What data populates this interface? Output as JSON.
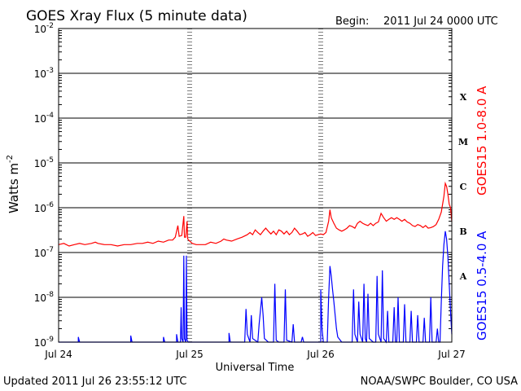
{
  "header": {
    "title": "GOES Xray Flux (5 minute data)",
    "begin_label": "Begin:",
    "begin_value": "2011 Jul 24 0000 UTC"
  },
  "footer": {
    "updated": "Updated 2011 Jul 26 23:55:12 UTC",
    "credit": "NOAA/SWPC Boulder, CO USA"
  },
  "colors": {
    "long_channel": "#ff0000",
    "short_channel": "#0000ff",
    "axes": "#000000"
  },
  "chart_data": {
    "type": "line",
    "title": "GOES Xray Flux (5 minute data)",
    "xlabel": "Universal Time",
    "ylabel": "Watts m",
    "ylabel_exp": "-2",
    "yscale": "log",
    "ylim": [
      1e-09,
      0.01
    ],
    "xlim": [
      "2011-07-24",
      "2011-07-27"
    ],
    "y_ticks": [
      {
        "base": "10",
        "exp": "-9",
        "value": 1e-09
      },
      {
        "base": "10",
        "exp": "-8",
        "value": 1e-08
      },
      {
        "base": "10",
        "exp": "-7",
        "value": 1e-07
      },
      {
        "base": "10",
        "exp": "-6",
        "value": 1e-06
      },
      {
        "base": "10",
        "exp": "-5",
        "value": 1e-05
      },
      {
        "base": "10",
        "exp": "-4",
        "value": 0.0001
      },
      {
        "base": "10",
        "exp": "-3",
        "value": 0.001
      },
      {
        "base": "10",
        "exp": "-2",
        "value": 0.01
      }
    ],
    "x_ticks": [
      {
        "label": "Jul 24",
        "day": 0
      },
      {
        "label": "Jul 25",
        "day": 1
      },
      {
        "label": "Jul 26",
        "day": 2
      },
      {
        "label": "Jul 27",
        "day": 3
      }
    ],
    "flare_classes": [
      {
        "label": "X",
        "value": 0.0003
      },
      {
        "label": "M",
        "value": 3e-05
      },
      {
        "label": "C",
        "value": 3e-06
      },
      {
        "label": "B",
        "value": 3e-07
      },
      {
        "label": "A",
        "value": 3e-08
      }
    ],
    "grid": true,
    "series": [
      {
        "name": "GOES15 1.0-8.0 A",
        "color": "#ff0000",
        "points": [
          [
            0.0,
            1.5e-07
          ],
          [
            0.04,
            1.6e-07
          ],
          [
            0.08,
            1.4e-07
          ],
          [
            0.12,
            1.5e-07
          ],
          [
            0.16,
            1.6e-07
          ],
          [
            0.2,
            1.5e-07
          ],
          [
            0.25,
            1.6e-07
          ],
          [
            0.28,
            1.7e-07
          ],
          [
            0.3,
            1.6e-07
          ],
          [
            0.35,
            1.5e-07
          ],
          [
            0.4,
            1.5e-07
          ],
          [
            0.45,
            1.4e-07
          ],
          [
            0.5,
            1.5e-07
          ],
          [
            0.55,
            1.5e-07
          ],
          [
            0.6,
            1.6e-07
          ],
          [
            0.64,
            1.6e-07
          ],
          [
            0.68,
            1.7e-07
          ],
          [
            0.72,
            1.6e-07
          ],
          [
            0.76,
            1.8e-07
          ],
          [
            0.8,
            1.7e-07
          ],
          [
            0.84,
            1.9e-07
          ],
          [
            0.87,
            1.9e-07
          ],
          [
            0.89,
            2.2e-07
          ],
          [
            0.91,
            4e-07
          ],
          [
            0.92,
            2.3e-07
          ],
          [
            0.94,
            2.4e-07
          ],
          [
            0.955,
            6.5e-07
          ],
          [
            0.96,
            2.2e-07
          ],
          [
            0.97,
            2.2e-07
          ],
          [
            0.98,
            5e-07
          ],
          [
            0.985,
            2e-07
          ],
          [
            1.0,
            1.8e-07
          ],
          [
            1.02,
            1.6e-07
          ],
          [
            1.05,
            1.5e-07
          ],
          [
            1.08,
            1.5e-07
          ],
          [
            1.12,
            1.5e-07
          ],
          [
            1.16,
            1.7e-07
          ],
          [
            1.2,
            1.6e-07
          ],
          [
            1.24,
            1.8e-07
          ],
          [
            1.26,
            2e-07
          ],
          [
            1.28,
            1.9e-07
          ],
          [
            1.32,
            1.8e-07
          ],
          [
            1.36,
            2e-07
          ],
          [
            1.4,
            2.2e-07
          ],
          [
            1.44,
            2.5e-07
          ],
          [
            1.46,
            2.8e-07
          ],
          [
            1.48,
            2.5e-07
          ],
          [
            1.5,
            3.2e-07
          ],
          [
            1.52,
            2.8e-07
          ],
          [
            1.54,
            2.5e-07
          ],
          [
            1.56,
            3e-07
          ],
          [
            1.58,
            3.5e-07
          ],
          [
            1.6,
            3e-07
          ],
          [
            1.62,
            2.6e-07
          ],
          [
            1.64,
            3e-07
          ],
          [
            1.66,
            2.5e-07
          ],
          [
            1.68,
            3.2e-07
          ],
          [
            1.7,
            3e-07
          ],
          [
            1.72,
            2.6e-07
          ],
          [
            1.74,
            3e-07
          ],
          [
            1.76,
            2.5e-07
          ],
          [
            1.78,
            2.8e-07
          ],
          [
            1.8,
            3.5e-07
          ],
          [
            1.82,
            3e-07
          ],
          [
            1.84,
            2.5e-07
          ],
          [
            1.86,
            2.6e-07
          ],
          [
            1.88,
            2.8e-07
          ],
          [
            1.9,
            2.3e-07
          ],
          [
            1.92,
            2.5e-07
          ],
          [
            1.94,
            2.8e-07
          ],
          [
            1.96,
            2.4e-07
          ],
          [
            1.98,
            2.5e-07
          ],
          [
            2.0,
            2.6e-07
          ],
          [
            2.02,
            2.5e-07
          ],
          [
            2.04,
            2.8e-07
          ],
          [
            2.06,
            5e-07
          ],
          [
            2.07,
            9e-07
          ],
          [
            2.08,
            6e-07
          ],
          [
            2.1,
            4.5e-07
          ],
          [
            2.12,
            3.5e-07
          ],
          [
            2.14,
            3.2e-07
          ],
          [
            2.16,
            3e-07
          ],
          [
            2.18,
            3.2e-07
          ],
          [
            2.2,
            3.5e-07
          ],
          [
            2.22,
            4e-07
          ],
          [
            2.24,
            3.8e-07
          ],
          [
            2.26,
            3.5e-07
          ],
          [
            2.28,
            4.5e-07
          ],
          [
            2.3,
            5e-07
          ],
          [
            2.32,
            4.5e-07
          ],
          [
            2.34,
            4.2e-07
          ],
          [
            2.36,
            4e-07
          ],
          [
            2.38,
            4.5e-07
          ],
          [
            2.4,
            4e-07
          ],
          [
            2.42,
            4.5e-07
          ],
          [
            2.44,
            4.8e-07
          ],
          [
            2.46,
            7.5e-07
          ],
          [
            2.48,
            6e-07
          ],
          [
            2.5,
            5e-07
          ],
          [
            2.52,
            5.5e-07
          ],
          [
            2.54,
            6e-07
          ],
          [
            2.56,
            5.5e-07
          ],
          [
            2.58,
            6e-07
          ],
          [
            2.6,
            5.5e-07
          ],
          [
            2.62,
            5e-07
          ],
          [
            2.64,
            5.5e-07
          ],
          [
            2.66,
            4.8e-07
          ],
          [
            2.68,
            4.5e-07
          ],
          [
            2.7,
            4e-07
          ],
          [
            2.72,
            3.8e-07
          ],
          [
            2.74,
            4.2e-07
          ],
          [
            2.76,
            4e-07
          ],
          [
            2.78,
            3.6e-07
          ],
          [
            2.8,
            4e-07
          ],
          [
            2.82,
            3.5e-07
          ],
          [
            2.84,
            3.6e-07
          ],
          [
            2.86,
            3.8e-07
          ],
          [
            2.88,
            4.2e-07
          ],
          [
            2.9,
            5.5e-07
          ],
          [
            2.92,
            8e-07
          ],
          [
            2.94,
            1.8e-06
          ],
          [
            2.95,
            3.5e-06
          ],
          [
            2.96,
            3e-06
          ],
          [
            2.97,
            2e-06
          ],
          [
            2.98,
            1.2e-06
          ],
          [
            2.99,
            1e-06
          ],
          [
            3.0,
            5e-07
          ]
        ]
      },
      {
        "name": "GOES15 0.5-4.0 A",
        "color": "#0000ff",
        "points": [
          [
            0.0,
            1e-09
          ],
          [
            0.15,
            1e-09
          ],
          [
            0.15,
            1.3e-09
          ],
          [
            0.16,
            1e-09
          ],
          [
            0.25,
            1e-09
          ],
          [
            0.55,
            1e-09
          ],
          [
            0.55,
            1.4e-09
          ],
          [
            0.56,
            1e-09
          ],
          [
            0.8,
            1e-09
          ],
          [
            0.8,
            1.3e-09
          ],
          [
            0.81,
            1e-09
          ],
          [
            0.9,
            1e-09
          ],
          [
            0.9,
            1.5e-09
          ],
          [
            0.91,
            1e-09
          ],
          [
            0.93,
            1e-09
          ],
          [
            0.935,
            6e-09
          ],
          [
            0.94,
            1.2e-09
          ],
          [
            0.95,
            1e-09
          ],
          [
            0.955,
            8.5e-08
          ],
          [
            0.96,
            1.2e-09
          ],
          [
            0.97,
            1e-09
          ],
          [
            0.975,
            8.5e-08
          ],
          [
            0.98,
            1.1e-09
          ],
          [
            0.99,
            1e-09
          ],
          [
            1.1,
            1e-09
          ],
          [
            1.3,
            1e-09
          ],
          [
            1.3,
            1.6e-09
          ],
          [
            1.31,
            1e-09
          ],
          [
            1.4,
            1e-09
          ],
          [
            1.42,
            1e-09
          ],
          [
            1.43,
            5.5e-09
          ],
          [
            1.44,
            1.5e-09
          ],
          [
            1.46,
            1e-09
          ],
          [
            1.47,
            4e-09
          ],
          [
            1.48,
            1.2e-09
          ],
          [
            1.52,
            1e-09
          ],
          [
            1.53,
            2.5e-09
          ],
          [
            1.54,
            5e-09
          ],
          [
            1.55,
            1e-08
          ],
          [
            1.56,
            4e-09
          ],
          [
            1.57,
            1.2e-09
          ],
          [
            1.6,
            1e-09
          ],
          [
            1.64,
            1e-09
          ],
          [
            1.65,
            2e-08
          ],
          [
            1.66,
            1.1e-09
          ],
          [
            1.68,
            1e-09
          ],
          [
            1.72,
            1e-09
          ],
          [
            1.73,
            1.5e-08
          ],
          [
            1.74,
            1.1e-09
          ],
          [
            1.78,
            1e-09
          ],
          [
            1.79,
            2.5e-09
          ],
          [
            1.8,
            1e-09
          ],
          [
            1.85,
            1e-09
          ],
          [
            1.86,
            1.3e-09
          ],
          [
            1.87,
            1e-09
          ],
          [
            1.9,
            1e-09
          ],
          [
            1.95,
            1e-09
          ],
          [
            2.0,
            1e-09
          ],
          [
            2.0,
            1.5e-08
          ],
          [
            2.01,
            2e-09
          ],
          [
            2.02,
            1e-09
          ],
          [
            2.05,
            1e-09
          ],
          [
            2.06,
            1e-08
          ],
          [
            2.07,
            5e-08
          ],
          [
            2.08,
            3e-08
          ],
          [
            2.09,
            1.5e-08
          ],
          [
            2.1,
            8e-09
          ],
          [
            2.11,
            4e-09
          ],
          [
            2.12,
            2e-09
          ],
          [
            2.13,
            1.3e-09
          ],
          [
            2.16,
            1e-09
          ],
          [
            2.24,
            1e-09
          ],
          [
            2.25,
            1.5e-08
          ],
          [
            2.26,
            1.5e-09
          ],
          [
            2.28,
            1e-09
          ],
          [
            2.29,
            8e-09
          ],
          [
            2.3,
            1.5e-09
          ],
          [
            2.32,
            1e-09
          ],
          [
            2.33,
            2e-08
          ],
          [
            2.34,
            1.2e-09
          ],
          [
            2.35,
            1e-09
          ],
          [
            2.36,
            1.2e-08
          ],
          [
            2.37,
            1.2e-09
          ],
          [
            2.4,
            1e-09
          ],
          [
            2.42,
            1e-09
          ],
          [
            2.43,
            3e-08
          ],
          [
            2.44,
            1.5e-09
          ],
          [
            2.46,
            1e-09
          ],
          [
            2.47,
            4e-08
          ],
          [
            2.48,
            1.2e-09
          ],
          [
            2.5,
            1e-09
          ],
          [
            2.51,
            5e-09
          ],
          [
            2.52,
            1e-09
          ],
          [
            2.55,
            1e-09
          ],
          [
            2.56,
            6e-09
          ],
          [
            2.57,
            1e-09
          ],
          [
            2.58,
            1e-09
          ],
          [
            2.59,
            1e-08
          ],
          [
            2.6,
            1e-09
          ],
          [
            2.63,
            1e-09
          ],
          [
            2.64,
            7e-09
          ],
          [
            2.65,
            1e-09
          ],
          [
            2.68,
            1e-09
          ],
          [
            2.69,
            5e-09
          ],
          [
            2.7,
            1e-09
          ],
          [
            2.73,
            1e-09
          ],
          [
            2.74,
            4e-09
          ],
          [
            2.75,
            1e-09
          ],
          [
            2.78,
            1e-09
          ],
          [
            2.79,
            3.5e-09
          ],
          [
            2.8,
            1e-09
          ],
          [
            2.83,
            1e-09
          ],
          [
            2.84,
            1e-08
          ],
          [
            2.85,
            1e-09
          ],
          [
            2.88,
            1e-09
          ],
          [
            2.89,
            2e-09
          ],
          [
            2.9,
            1e-09
          ],
          [
            2.91,
            1e-09
          ],
          [
            2.92,
            8e-09
          ],
          [
            2.93,
            5e-08
          ],
          [
            2.94,
            1.5e-07
          ],
          [
            2.95,
            3e-07
          ],
          [
            2.96,
            2e-07
          ],
          [
            2.97,
            8e-08
          ],
          [
            2.98,
            2e-08
          ],
          [
            2.99,
            5e-09
          ],
          [
            3.0,
            1.5e-09
          ]
        ]
      }
    ]
  }
}
